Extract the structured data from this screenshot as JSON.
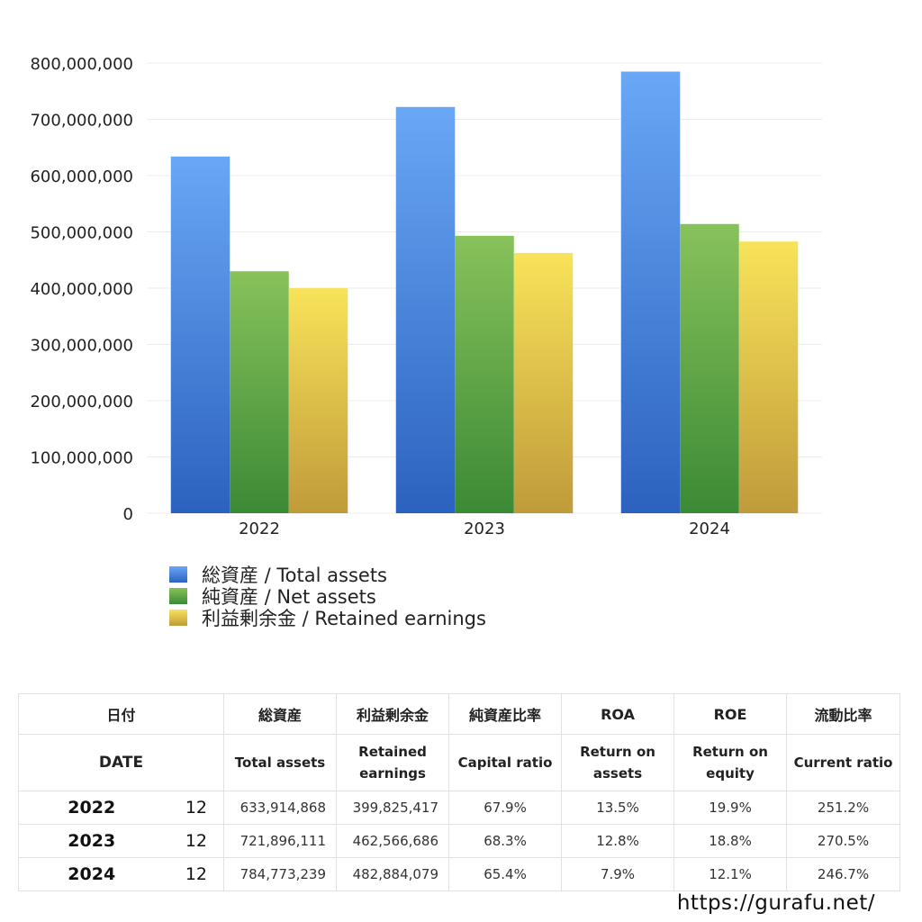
{
  "chart_data": {
    "type": "bar",
    "categories": [
      "2022",
      "2023",
      "2024"
    ],
    "series": [
      {
        "name": "総資産 / Total assets",
        "values": [
          633914868,
          721896111,
          784773239
        ],
        "color_top": "#6aa7f5",
        "color_bottom": "#2b62bf"
      },
      {
        "name": "純資産 / Net assets",
        "values": [
          430000000,
          493000000,
          514000000
        ],
        "color_top": "#88c25b",
        "color_bottom": "#3b8a35"
      },
      {
        "name": "利益剰余金 / Retained earnings",
        "values": [
          399825417,
          462566686,
          482884079
        ],
        "color_top": "#f8e35a",
        "color_bottom": "#c09b3a"
      }
    ],
    "ylim": [
      0,
      800000000
    ],
    "yticks": [
      "0",
      "100,000,000",
      "200,000,000",
      "300,000,000",
      "400,000,000",
      "500,000,000",
      "600,000,000",
      "700,000,000",
      "800,000,000"
    ],
    "grid": true,
    "legend_position": "bottom-left"
  },
  "table": {
    "headers_jp": {
      "date": "日付",
      "total_assets": "総資産",
      "retained": "利益剰余金",
      "capital_ratio": "純資産比率",
      "roa": "ROA",
      "roe": "ROE",
      "current_ratio": "流動比率"
    },
    "headers_en": {
      "date": "DATE",
      "total_assets": "Total assets",
      "retained": "Retained earnings",
      "capital_ratio": "Capital ratio",
      "roa": "Return on assets",
      "roe": "Return on equity",
      "current_ratio": "Current ratio"
    },
    "rows": [
      {
        "year": "2022",
        "month": "12",
        "total_assets": "633,914,868",
        "retained": "399,825,417",
        "capital_ratio": "67.9%",
        "roa": "13.5%",
        "roe": "19.9%",
        "current_ratio": "251.2%"
      },
      {
        "year": "2023",
        "month": "12",
        "total_assets": "721,896,111",
        "retained": "462,566,686",
        "capital_ratio": "68.3%",
        "roa": "12.8%",
        "roe": "18.8%",
        "current_ratio": "270.5%"
      },
      {
        "year": "2024",
        "month": "12",
        "total_assets": "784,773,239",
        "retained": "482,884,079",
        "capital_ratio": "65.4%",
        "roa": "7.9%",
        "roe": "12.1%",
        "current_ratio": "246.7%"
      }
    ]
  },
  "footer": {
    "url": "https://gurafu.net/"
  }
}
